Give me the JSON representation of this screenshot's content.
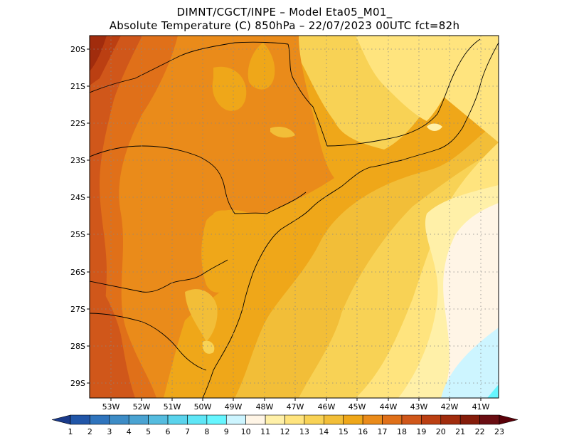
{
  "header": {
    "line1": "DIMNT/CGCT/INPE –  Model Eta05_M01_",
    "line2": "Absolute Temperature (C) 850hPa –  22/07/2023 00UTC fct=82h"
  },
  "map": {
    "lon_labels": [
      "53W",
      "52W",
      "51W",
      "50W",
      "49W",
      "48W",
      "47W",
      "46W",
      "45W",
      "44W",
      "43W",
      "42W",
      "41W"
    ],
    "lat_labels": [
      "20S",
      "21S",
      "22S",
      "23S",
      "24S",
      "25S",
      "26S",
      "27S",
      "28S",
      "29S"
    ],
    "gridlines": "dotted"
  },
  "colorbar": {
    "labels": [
      "1",
      "2",
      "3",
      "4",
      "5",
      "6",
      "7",
      "8",
      "9",
      "10",
      "11",
      "12",
      "13",
      "14",
      "15",
      "16",
      "17",
      "18",
      "19",
      "20",
      "21",
      "22",
      "23"
    ],
    "colors": [
      "#1a3a8a",
      "#2156a8",
      "#2f74bd",
      "#3d8cc6",
      "#4aa3d2",
      "#55bcdf",
      "#5ad3ec",
      "#5ee6f6",
      "#66f6ff",
      "#cdf5ff",
      "#fff5e6",
      "#fff0a8",
      "#ffe47e",
      "#f8d255",
      "#f2be38",
      "#efa719",
      "#ea8b1a",
      "#e07019",
      "#d0571a",
      "#bb3f12",
      "#a12c0d",
      "#851c0a",
      "#6a0d12",
      "#5a0008"
    ]
  }
}
